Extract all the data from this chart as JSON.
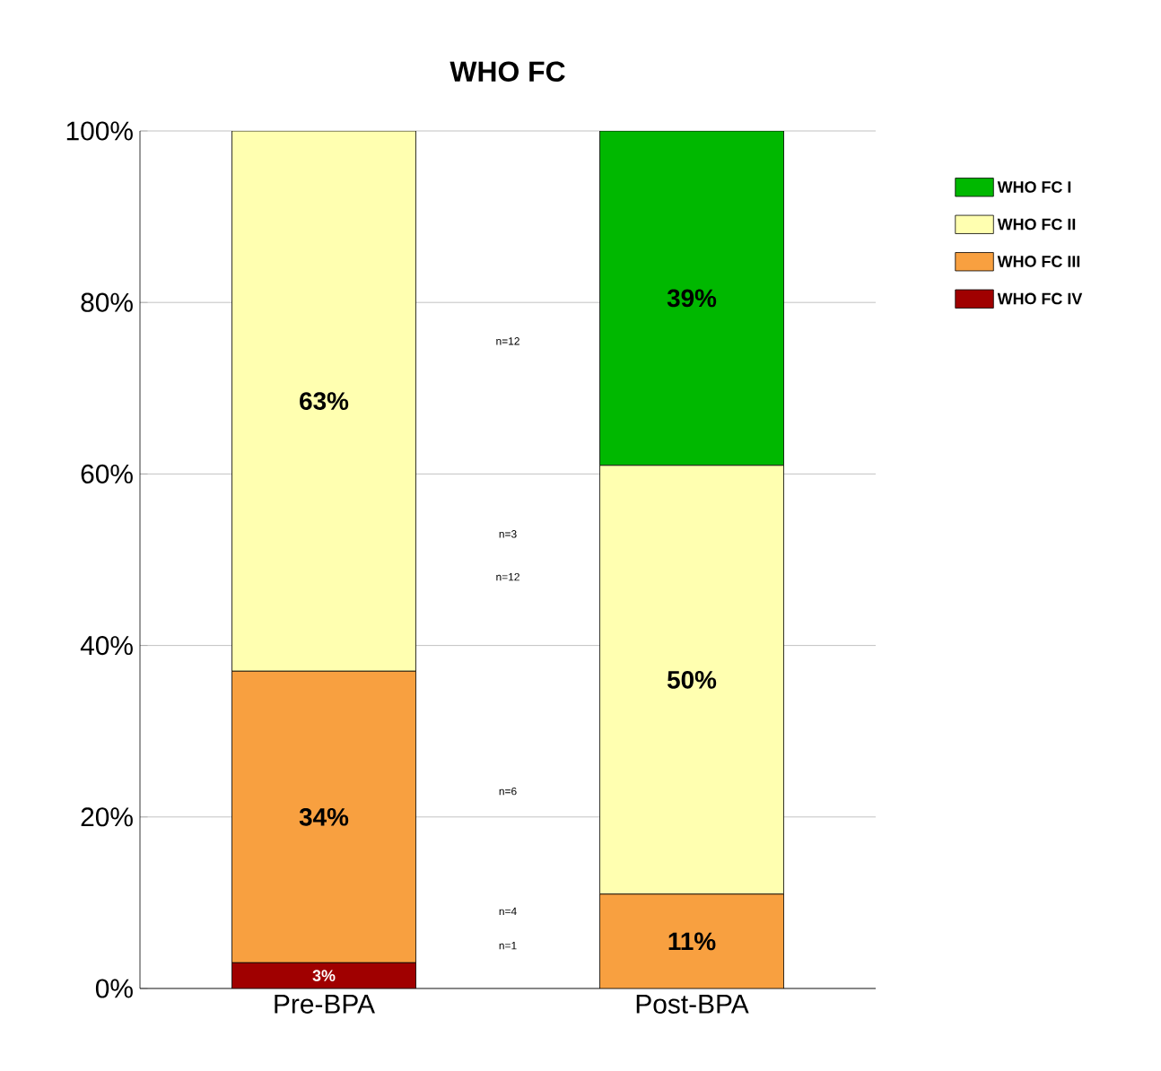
{
  "chart_data": {
    "type": "bar",
    "stacked": true,
    "title": "WHO FC",
    "categories": [
      "Pre-BPA",
      "Post-BPA"
    ],
    "series": [
      {
        "name": "WHO FC IV",
        "color": "#a00000",
        "values": [
          3,
          0
        ],
        "value_labels": [
          "3%",
          null
        ]
      },
      {
        "name": "WHO FC III",
        "color": "#f8a040",
        "values": [
          34,
          11
        ],
        "value_labels": [
          "34%",
          "11%"
        ]
      },
      {
        "name": "WHO FC II",
        "color": "#ffffb0",
        "values": [
          63,
          50
        ],
        "value_labels": [
          "63%",
          "50%"
        ]
      },
      {
        "name": "WHO FC I",
        "color": "#00b800",
        "values": [
          0,
          39
        ],
        "value_labels": [
          null,
          "39%"
        ]
      }
    ],
    "ylim": [
      0,
      100
    ],
    "yticks": [
      {
        "value": 0,
        "label": "0%"
      },
      {
        "value": 20,
        "label": "20%"
      },
      {
        "value": 40,
        "label": "40%"
      },
      {
        "value": 60,
        "label": "60%"
      },
      {
        "value": 80,
        "label": "80%"
      },
      {
        "value": 100,
        "label": "100%"
      }
    ],
    "grid": "y",
    "legend": "right",
    "annotations": [
      {
        "text": "n=12",
        "y": 75.5
      },
      {
        "text": "n=3",
        "y": 53
      },
      {
        "text": "n=12",
        "y": 48
      },
      {
        "text": "n=6",
        "y": 23
      },
      {
        "text": "n=4",
        "y": 9
      },
      {
        "text": "n=1",
        "y": 5
      }
    ]
  }
}
